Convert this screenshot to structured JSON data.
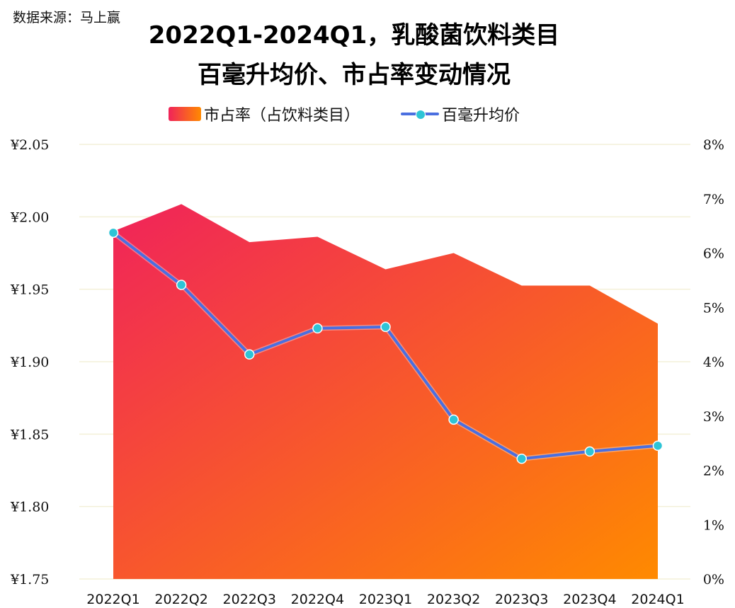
{
  "source": "数据来源：马上赢",
  "title_line1": "2022Q1-2024Q1，乳酸菌饮料类目",
  "title_line2": "百毫升均价、市占率变动情况",
  "legend": {
    "area_label": "市占率（占饮料类目）",
    "line_label": "百毫升均价"
  },
  "colors": {
    "area_start": "#f0235a",
    "area_end": "#ff8a00",
    "line": "#4a6fe0",
    "marker": "#2ec4d6"
  },
  "chart_data": {
    "type": "line",
    "categories": [
      "2022Q1",
      "2022Q2",
      "2022Q3",
      "2022Q4",
      "2023Q1",
      "2023Q2",
      "2023Q3",
      "2023Q4",
      "2024Q1"
    ],
    "series": [
      {
        "name": "市占率（占饮料类目）",
        "type": "area",
        "axis": "right",
        "values": [
          6.4,
          6.9,
          6.2,
          6.3,
          5.7,
          6.0,
          5.4,
          5.4,
          4.7
        ]
      },
      {
        "name": "百毫升均价",
        "type": "line",
        "axis": "left",
        "values": [
          1.989,
          1.953,
          1.905,
          1.923,
          1.924,
          1.86,
          1.833,
          1.838,
          1.842
        ]
      }
    ],
    "y_left": {
      "ticks": [
        "¥2.05",
        "¥2.00",
        "¥1.95",
        "¥1.90",
        "¥1.85",
        "¥1.80",
        "¥1.75"
      ],
      "min": 1.75,
      "max": 2.05
    },
    "y_right": {
      "ticks": [
        "8%",
        "7%",
        "6%",
        "5%",
        "4%",
        "3%",
        "2%",
        "1%",
        "0%"
      ],
      "min": 0,
      "max": 8
    },
    "grid": true
  }
}
